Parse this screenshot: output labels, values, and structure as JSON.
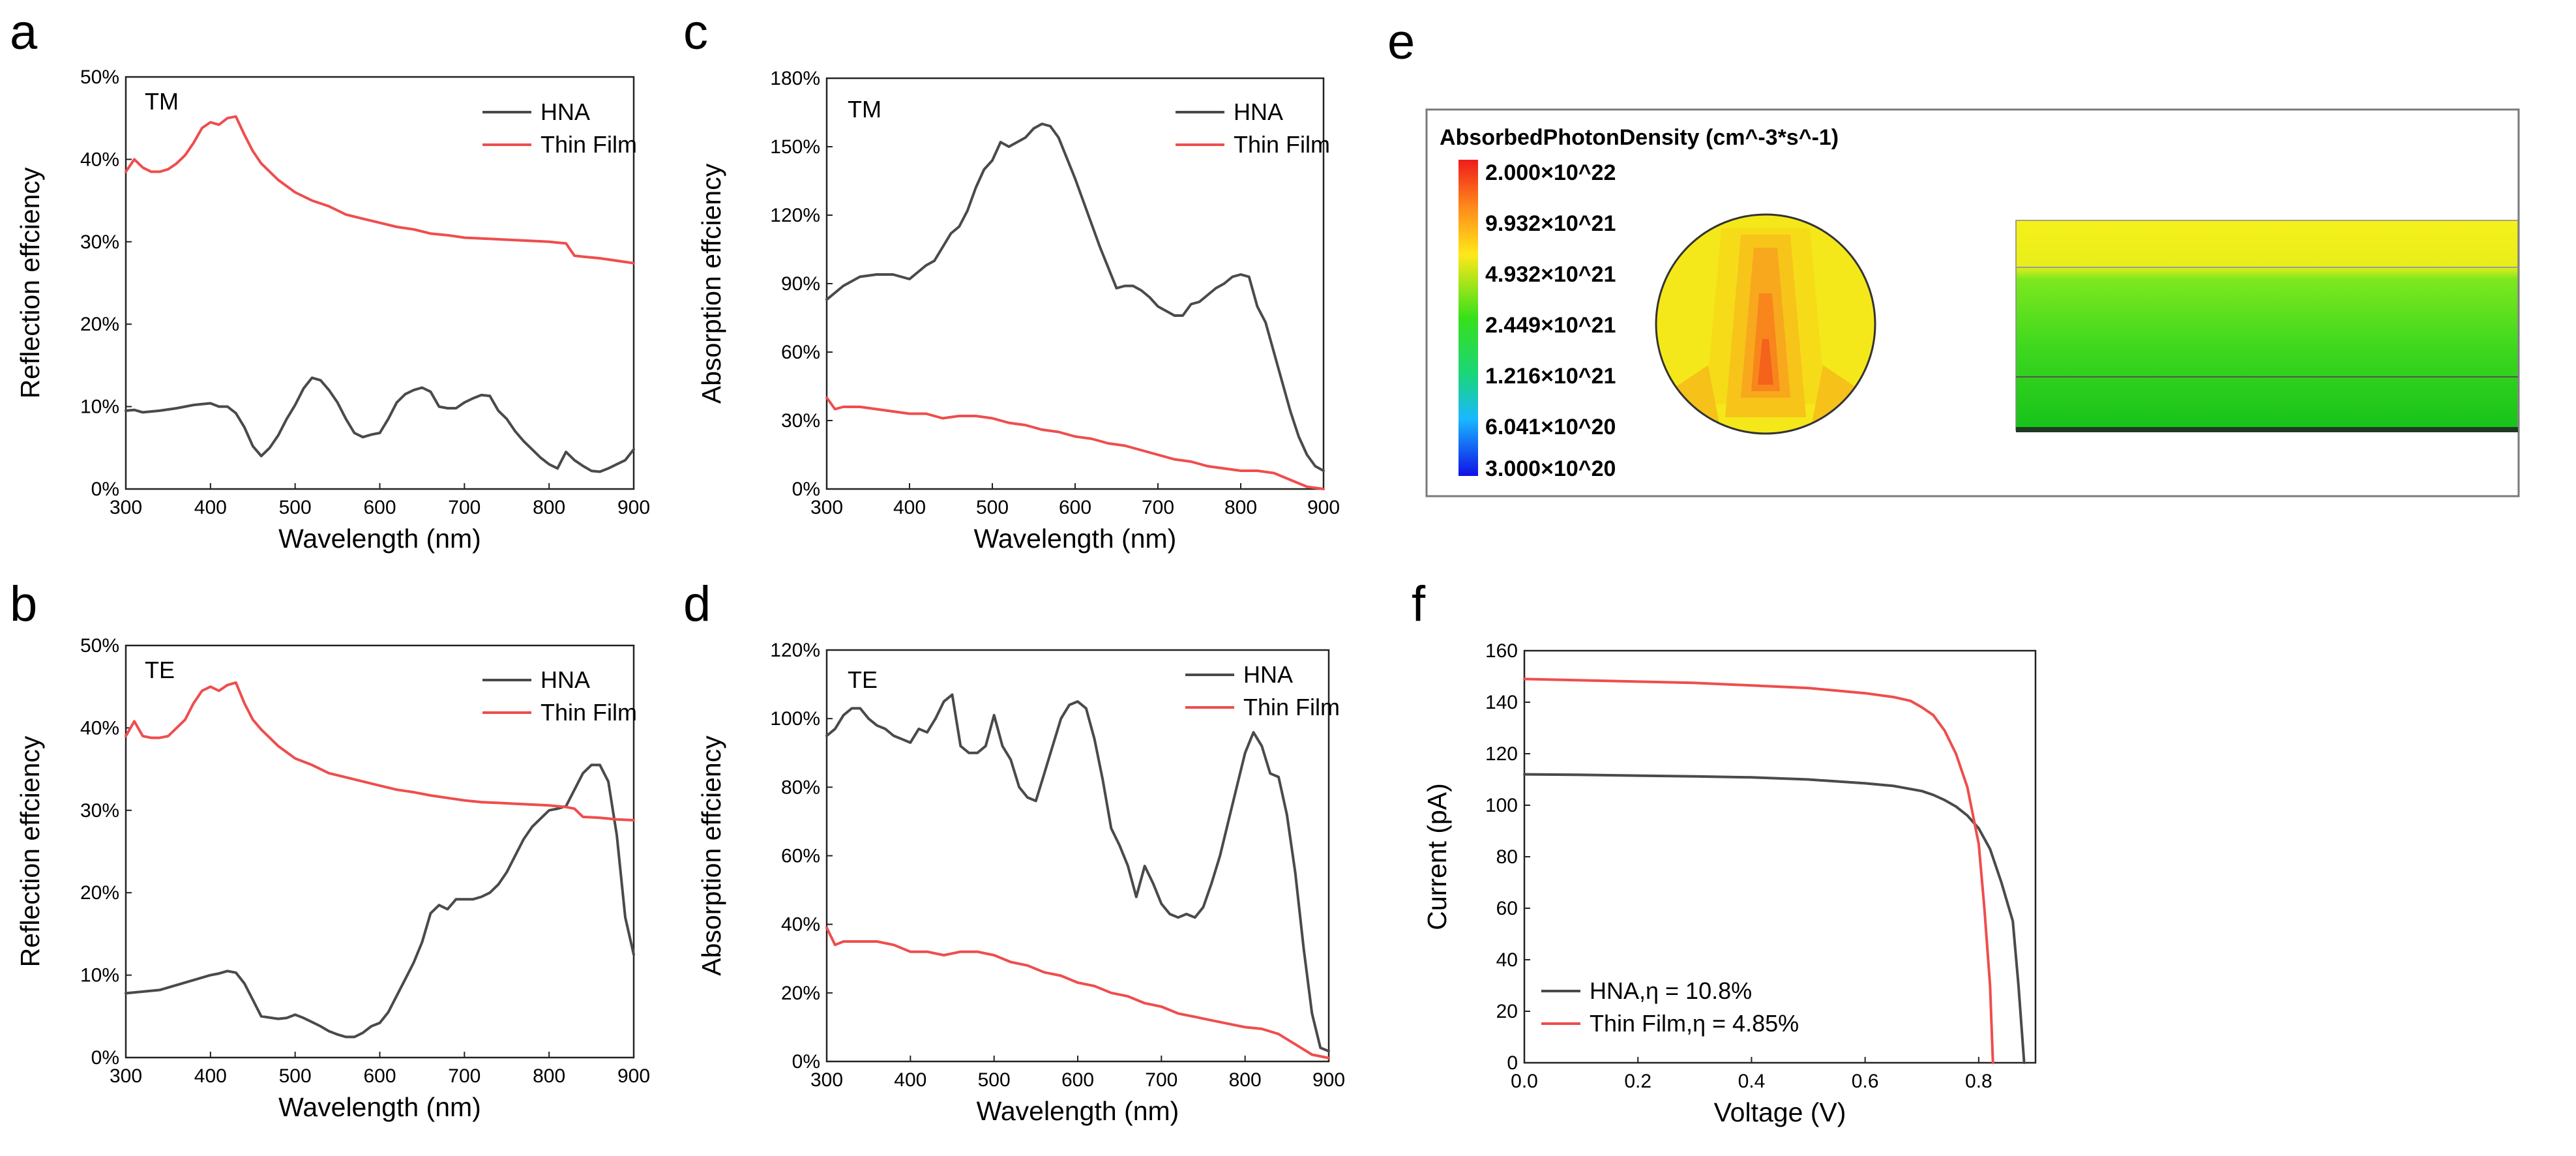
{
  "colors": {
    "hna": "#4a4a4a",
    "thin_film": "#ef4d4d",
    "axis": "#222222"
  },
  "chart_data": [
    {
      "id": "a",
      "panel_label": "a",
      "type": "line",
      "inset_label": "TM",
      "xlabel": "Wavelength (nm)",
      "ylabel": "Reflection effciency",
      "xlim": [
        300,
        900
      ],
      "ylim": [
        0,
        50
      ],
      "xticks": [
        "300",
        "400",
        "500",
        "600",
        "700",
        "800",
        "900"
      ],
      "yticks": [
        "0%",
        "10%",
        "20%",
        "30%",
        "40%",
        "50%"
      ],
      "legend": [
        "HNA",
        "Thin Film"
      ],
      "series": [
        {
          "name": "HNA",
          "color": "#4a4a4a",
          "x": [
            300,
            310,
            320,
            340,
            360,
            380,
            400,
            410,
            420,
            430,
            440,
            450,
            460,
            470,
            480,
            490,
            500,
            510,
            520,
            530,
            540,
            550,
            560,
            570,
            580,
            590,
            600,
            610,
            620,
            630,
            640,
            650,
            660,
            670,
            680,
            690,
            700,
            710,
            720,
            730,
            740,
            750,
            760,
            770,
            780,
            790,
            800,
            810,
            820,
            830,
            840,
            850,
            860,
            870,
            880,
            890,
            900
          ],
          "y": [
            9.5,
            9.6,
            9.3,
            9.5,
            9.8,
            10.2,
            10.4,
            10.0,
            10.0,
            9.2,
            7.5,
            5.2,
            4.0,
            5.0,
            6.5,
            8.5,
            10.2,
            12.2,
            13.5,
            13.2,
            12.0,
            10.5,
            8.5,
            6.8,
            6.3,
            6.6,
            6.8,
            8.5,
            10.5,
            11.5,
            12.0,
            12.3,
            11.8,
            10.0,
            9.8,
            9.8,
            10.5,
            11.0,
            11.4,
            11.3,
            9.5,
            8.5,
            7.0,
            5.8,
            4.8,
            3.8,
            3.0,
            2.5,
            4.5,
            3.5,
            2.8,
            2.2,
            2.1,
            2.5,
            3.0,
            3.5,
            4.8
          ]
        },
        {
          "name": "Thin Film",
          "color": "#ef4d4d",
          "x": [
            300,
            310,
            320,
            330,
            340,
            350,
            360,
            370,
            380,
            390,
            400,
            410,
            420,
            430,
            440,
            450,
            460,
            480,
            500,
            520,
            540,
            560,
            580,
            600,
            620,
            640,
            660,
            680,
            700,
            720,
            740,
            760,
            780,
            800,
            810,
            820,
            830,
            840,
            860,
            880,
            900
          ],
          "y": [
            38.5,
            40.0,
            39.0,
            38.5,
            38.5,
            38.8,
            39.5,
            40.5,
            42.0,
            43.8,
            44.5,
            44.2,
            45.0,
            45.2,
            43.0,
            41.0,
            39.5,
            37.5,
            36.0,
            35.0,
            34.3,
            33.3,
            32.8,
            32.3,
            31.8,
            31.5,
            31.0,
            30.8,
            30.5,
            30.4,
            30.3,
            30.2,
            30.1,
            30.0,
            29.9,
            29.8,
            28.3,
            28.2,
            28.0,
            27.7,
            27.4
          ]
        }
      ]
    },
    {
      "id": "b",
      "panel_label": "b",
      "type": "line",
      "inset_label": "TE",
      "xlabel": "Wavelength (nm)",
      "ylabel": "Reflection effciency",
      "xlim": [
        300,
        900
      ],
      "ylim": [
        0,
        50
      ],
      "xticks": [
        "300",
        "400",
        "500",
        "600",
        "700",
        "800",
        "900"
      ],
      "yticks": [
        "0%",
        "10%",
        "20%",
        "30%",
        "40%",
        "50%"
      ],
      "legend": [
        "HNA",
        "Thin Film"
      ],
      "series": [
        {
          "name": "HNA",
          "color": "#4a4a4a",
          "x": [
            300,
            320,
            340,
            360,
            380,
            400,
            410,
            420,
            430,
            440,
            450,
            460,
            480,
            490,
            500,
            510,
            520,
            530,
            540,
            550,
            560,
            570,
            580,
            590,
            600,
            610,
            620,
            630,
            640,
            650,
            660,
            670,
            680,
            690,
            700,
            710,
            720,
            730,
            740,
            750,
            760,
            770,
            780,
            790,
            800,
            810,
            820,
            830,
            840,
            850,
            860,
            870,
            880,
            890,
            900
          ],
          "y": [
            7.8,
            8.0,
            8.2,
            8.8,
            9.4,
            10.0,
            10.2,
            10.5,
            10.3,
            9.0,
            7.0,
            5.0,
            4.7,
            4.8,
            5.2,
            4.8,
            4.3,
            3.8,
            3.2,
            2.8,
            2.5,
            2.5,
            3.0,
            3.8,
            4.2,
            5.5,
            7.5,
            9.5,
            11.5,
            14.0,
            17.5,
            18.5,
            18.0,
            19.2,
            19.2,
            19.2,
            19.5,
            20.0,
            21.0,
            22.5,
            24.5,
            26.5,
            28.0,
            29.0,
            30.0,
            30.2,
            30.5,
            32.5,
            34.5,
            35.5,
            35.5,
            33.5,
            27.0,
            17.0,
            12.5
          ]
        },
        {
          "name": "Thin Film",
          "color": "#ef4d4d",
          "x": [
            300,
            310,
            320,
            330,
            340,
            350,
            360,
            370,
            380,
            390,
            400,
            410,
            420,
            430,
            440,
            450,
            460,
            480,
            500,
            520,
            540,
            560,
            580,
            600,
            620,
            640,
            660,
            680,
            700,
            720,
            740,
            760,
            780,
            800,
            810,
            820,
            830,
            840,
            860,
            880,
            900
          ],
          "y": [
            39.0,
            40.8,
            39.0,
            38.8,
            38.8,
            39.0,
            40.0,
            41.0,
            43.0,
            44.5,
            45.0,
            44.5,
            45.2,
            45.5,
            43.0,
            41.0,
            39.8,
            37.8,
            36.3,
            35.5,
            34.5,
            34.0,
            33.5,
            33.0,
            32.5,
            32.2,
            31.8,
            31.5,
            31.2,
            31.0,
            30.9,
            30.8,
            30.7,
            30.6,
            30.5,
            30.4,
            30.2,
            29.2,
            29.1,
            28.9,
            28.8
          ]
        }
      ]
    },
    {
      "id": "c",
      "panel_label": "c",
      "type": "line",
      "inset_label": "TM",
      "xlabel": "Wavelength (nm)",
      "ylabel": "Absorption effciency",
      "xlim": [
        300,
        900
      ],
      "ylim": [
        0,
        180
      ],
      "xticks": [
        "300",
        "400",
        "500",
        "600",
        "700",
        "800",
        "900"
      ],
      "yticks": [
        "0%",
        "30%",
        "60%",
        "90%",
        "120%",
        "150%",
        "180%"
      ],
      "legend": [
        "HNA",
        "Thin Film"
      ],
      "series": [
        {
          "name": "HNA",
          "color": "#4a4a4a",
          "x": [
            300,
            310,
            320,
            340,
            360,
            380,
            390,
            400,
            410,
            420,
            430,
            440,
            450,
            460,
            470,
            480,
            490,
            500,
            510,
            520,
            530,
            540,
            550,
            560,
            570,
            580,
            590,
            600,
            610,
            620,
            630,
            640,
            650,
            660,
            670,
            680,
            690,
            700,
            710,
            720,
            730,
            740,
            750,
            760,
            770,
            780,
            790,
            800,
            810,
            820,
            830,
            840,
            850,
            860,
            870,
            880,
            890,
            900
          ],
          "y": [
            83,
            86,
            89,
            93,
            94,
            94,
            93,
            92,
            95,
            98,
            100,
            106,
            112,
            115,
            122,
            132,
            140,
            144,
            152,
            150,
            152,
            154,
            158,
            160,
            159,
            154,
            145,
            136,
            126,
            116,
            106,
            97,
            88,
            89,
            89,
            87,
            84,
            80,
            78,
            76,
            76,
            81,
            82,
            85,
            88,
            90,
            93,
            94,
            93,
            80,
            73,
            60,
            47,
            34,
            23,
            15,
            10,
            8
          ]
        },
        {
          "name": "Thin Film",
          "color": "#ef4d4d",
          "x": [
            300,
            310,
            320,
            340,
            360,
            380,
            400,
            420,
            440,
            460,
            480,
            500,
            520,
            540,
            560,
            580,
            600,
            620,
            640,
            660,
            680,
            700,
            720,
            740,
            760,
            780,
            800,
            820,
            830,
            840,
            860,
            880,
            900
          ],
          "y": [
            40,
            35,
            36,
            36,
            35,
            34,
            33,
            33,
            31,
            32,
            32,
            31,
            29,
            28,
            26,
            25,
            23,
            22,
            20,
            19,
            17,
            15,
            13,
            12,
            10,
            9,
            8,
            8,
            7.5,
            7,
            4,
            1,
            0
          ]
        }
      ]
    },
    {
      "id": "d",
      "panel_label": "d",
      "type": "line",
      "inset_label": "TE",
      "xlabel": "Wavelength (nm)",
      "ylabel": "Absorption effciency",
      "xlim": [
        300,
        900
      ],
      "ylim": [
        0,
        120
      ],
      "xticks": [
        "300",
        "400",
        "500",
        "600",
        "700",
        "800",
        "900"
      ],
      "yticks": [
        "0%",
        "20%",
        "40%",
        "60%",
        "80%",
        "100%",
        "120%"
      ],
      "legend": [
        "HNA",
        "Thin Film"
      ],
      "series": [
        {
          "name": "HNA",
          "color": "#4a4a4a",
          "x": [
            300,
            310,
            320,
            330,
            340,
            350,
            360,
            370,
            380,
            390,
            400,
            410,
            420,
            430,
            440,
            450,
            460,
            470,
            480,
            490,
            500,
            510,
            520,
            530,
            540,
            550,
            560,
            570,
            580,
            590,
            600,
            610,
            620,
            630,
            640,
            650,
            660,
            670,
            680,
            690,
            700,
            710,
            720,
            730,
            740,
            750,
            760,
            770,
            780,
            790,
            800,
            810,
            820,
            830,
            840,
            850,
            860,
            870,
            880,
            890,
            900
          ],
          "y": [
            95,
            97,
            101,
            103,
            103,
            100,
            98,
            97,
            95,
            94,
            93,
            97,
            96,
            100,
            105,
            107,
            92,
            90,
            90,
            92,
            101,
            92,
            88,
            80,
            77,
            76,
            84,
            92,
            100,
            104,
            105,
            103,
            94,
            82,
            68,
            63,
            57,
            48,
            57,
            52,
            46,
            43,
            42,
            43,
            42,
            45,
            52,
            60,
            70,
            80,
            90,
            96,
            92,
            84,
            83,
            72,
            55,
            33,
            14,
            4,
            3
          ]
        },
        {
          "name": "Thin Film",
          "color": "#ef4d4d",
          "x": [
            300,
            310,
            320,
            340,
            360,
            380,
            400,
            420,
            440,
            460,
            480,
            500,
            520,
            540,
            560,
            580,
            600,
            620,
            640,
            660,
            680,
            700,
            720,
            740,
            760,
            780,
            800,
            820,
            840,
            860,
            880,
            900
          ],
          "y": [
            39,
            34,
            35,
            35,
            35,
            34,
            32,
            32,
            31,
            32,
            32,
            31,
            29,
            28,
            26,
            25,
            23,
            22,
            20,
            19,
            17,
            16,
            14,
            13,
            12,
            11,
            10,
            9.5,
            8,
            5,
            2,
            1
          ]
        }
      ]
    },
    {
      "id": "f",
      "panel_label": "f",
      "type": "line",
      "xlabel": "Voltage (V)",
      "ylabel": "Current (pA)",
      "xlim": [
        0,
        0.9
      ],
      "ylim": [
        0,
        160
      ],
      "xticks": [
        "0.0",
        "0.2",
        "0.4",
        "0.6",
        "0.8"
      ],
      "yticks": [
        "0",
        "20",
        "40",
        "60",
        "80",
        "100",
        "120",
        "140",
        "160"
      ],
      "legend": [
        "HNA,η  = 10.8%",
        "Thin Film,η  = 4.85%"
      ],
      "series": [
        {
          "name": "HNA,η  = 10.8%",
          "color": "#4a4a4a",
          "x": [
            0,
            0.1,
            0.2,
            0.3,
            0.4,
            0.5,
            0.6,
            0.65,
            0.7,
            0.72,
            0.74,
            0.76,
            0.78,
            0.8,
            0.82,
            0.84,
            0.86,
            0.87,
            0.88
          ],
          "y": [
            112,
            111.8,
            111.5,
            111.2,
            110.8,
            110,
            108.5,
            107.5,
            105.5,
            104,
            102,
            99.5,
            96,
            91,
            83,
            70,
            55,
            30,
            0
          ]
        },
        {
          "name": "Thin Film,η  = 4.85%",
          "color": "#ef4d4d",
          "x": [
            0,
            0.1,
            0.2,
            0.3,
            0.4,
            0.5,
            0.55,
            0.6,
            0.65,
            0.68,
            0.7,
            0.72,
            0.74,
            0.76,
            0.78,
            0.8,
            0.81,
            0.82,
            0.825
          ],
          "y": [
            149,
            148.5,
            148,
            147.5,
            146.5,
            145.5,
            144.5,
            143.5,
            142,
            140.5,
            138,
            135,
            129,
            120,
            107,
            85,
            60,
            30,
            0
          ]
        }
      ]
    }
  ],
  "panel_e": {
    "panel_label": "e",
    "title": "AbsorbedPhotonDensity (cm^-3*s^-1)",
    "colorbar_labels": [
      "2.000×10^22",
      "9.932×10^21",
      "4.932×10^21",
      "2.449×10^21",
      "1.216×10^21",
      "6.041×10^20",
      "3.000×10^20"
    ]
  }
}
